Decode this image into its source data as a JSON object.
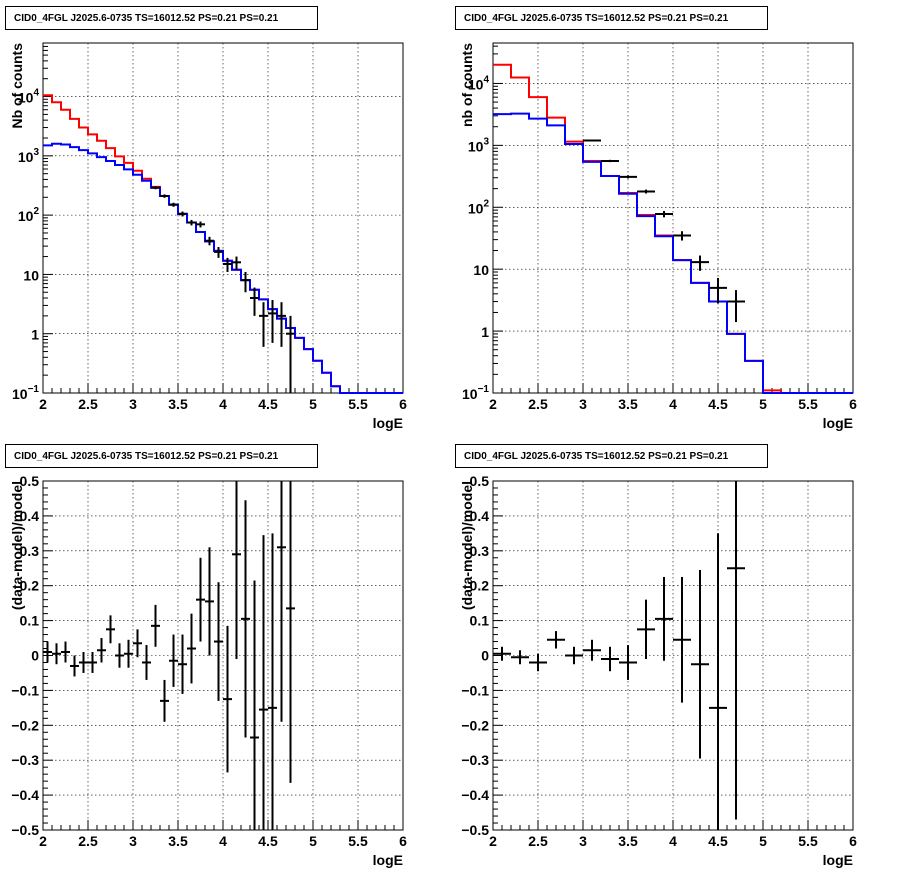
{
  "chart_data": [
    {
      "type": "line",
      "title": "CID0_4FGL J2025.6-0735 TS=16012.52 PS=0.21 PS=0.21",
      "xlabel": "logE",
      "ylabel": "Nb of counts",
      "xlim": [
        2,
        6
      ],
      "ylim": [
        0.1,
        80000
      ],
      "yscale": "log",
      "grid": true,
      "x_ticks": [
        "2",
        "2.5",
        "3",
        "3.5",
        "4",
        "4.5",
        "5",
        "5.5",
        "6"
      ],
      "y_ticks": [
        {
          "value": 10000,
          "label": "10",
          "exp": "4"
        },
        {
          "value": 1000,
          "label": "10",
          "exp": "3"
        },
        {
          "value": 100,
          "label": "10",
          "exp": "2"
        },
        {
          "value": 10,
          "label": "10",
          "exp": ""
        },
        {
          "value": 1,
          "label": "1",
          "exp": ""
        },
        {
          "value": 0.1,
          "label": "10",
          "exp": "−1"
        }
      ],
      "bin_edges": [
        2.0,
        2.1,
        2.2,
        2.3,
        2.4,
        2.5,
        2.6,
        2.7,
        2.8,
        2.9,
        3.0,
        3.1,
        3.2,
        3.3,
        3.4,
        3.5,
        3.6,
        3.7,
        3.8,
        3.9,
        4.0,
        4.1,
        4.2,
        4.3,
        4.4,
        4.5,
        4.6,
        4.7,
        4.8,
        4.9,
        5.0,
        5.1,
        5.2,
        5.3,
        5.4,
        5.5,
        5.6,
        5.7,
        5.8,
        5.9,
        6.0
      ],
      "series": [
        {
          "color": "#ff0000",
          "values": [
            10500,
            8000,
            6000,
            4200,
            3000,
            2300,
            1800,
            1350,
            980,
            760,
            560,
            410,
            300,
            210,
            150,
            105,
            75,
            52,
            36,
            25,
            17,
            12,
            8,
            5.5,
            3.8,
            2.6,
            1.8,
            1.25,
            0.85,
            0.55,
            0.35,
            0.22,
            0.13,
            0.1,
            0.1,
            0.1,
            0.1,
            0.1,
            0.1,
            0.1
          ]
        },
        {
          "color": "#0000ff",
          "values": [
            1500,
            1600,
            1550,
            1400,
            1250,
            1100,
            950,
            820,
            700,
            590,
            480,
            380,
            290,
            210,
            150,
            105,
            75,
            52,
            36,
            25,
            17,
            12,
            8,
            5.5,
            3.8,
            2.6,
            1.8,
            1.25,
            0.85,
            0.55,
            0.35,
            0.22,
            0.13,
            0.1,
            0.1,
            0.1,
            0.1,
            0.1,
            0.1,
            0.1
          ]
        }
      ],
      "data_points": {
        "x": [
          3.25,
          3.35,
          3.45,
          3.55,
          3.65,
          3.75,
          3.85,
          3.95,
          4.05,
          4.15,
          4.25,
          4.35,
          4.45,
          4.55,
          4.65,
          4.75
        ],
        "y": [
          290,
          210,
          150,
          105,
          75,
          70,
          37,
          24,
          15,
          16,
          8,
          4,
          2,
          2.2,
          2,
          1
        ],
        "yerr_low": [
          17,
          14,
          12,
          10,
          8,
          8,
          6,
          5,
          4,
          4,
          3,
          2,
          1.4,
          1.5,
          1.4,
          0.9
        ],
        "yerr_high": [
          17,
          14,
          12,
          10,
          8,
          8,
          6,
          5,
          4,
          4,
          3,
          2,
          1.4,
          1.5,
          1.4,
          1
        ]
      }
    },
    {
      "type": "line",
      "title": "CID0_4FGL J2025.6-0735 TS=16012.52 PS=0.21 PS=0.21",
      "xlabel": "logE",
      "ylabel": "nb of counts",
      "xlim": [
        2,
        6
      ],
      "ylim": [
        0.1,
        45000
      ],
      "yscale": "log",
      "grid": true,
      "x_ticks": [
        "2",
        "2.5",
        "3",
        "3.5",
        "4",
        "4.5",
        "5",
        "5.5",
        "6"
      ],
      "y_ticks": [
        {
          "value": 10000,
          "label": "10",
          "exp": "4"
        },
        {
          "value": 1000,
          "label": "10",
          "exp": "3"
        },
        {
          "value": 100,
          "label": "10",
          "exp": "2"
        },
        {
          "value": 10,
          "label": "10",
          "exp": ""
        },
        {
          "value": 1,
          "label": "1",
          "exp": ""
        },
        {
          "value": 0.1,
          "label": "10",
          "exp": "−1"
        }
      ],
      "bin_edges": [
        2.0,
        2.2,
        2.4,
        2.6,
        2.8,
        3.0,
        3.2,
        3.4,
        3.6,
        3.8,
        4.0,
        4.2,
        4.4,
        4.6,
        4.8,
        5.0,
        5.2,
        5.4,
        5.6,
        5.8,
        6.0
      ],
      "series": [
        {
          "color": "#ff0000",
          "values": [
            20000,
            12500,
            6000,
            2800,
            1150,
            560,
            320,
            170,
            75,
            35,
            14,
            6,
            3,
            0.9,
            0.33,
            0.11,
            0.1,
            0.1,
            0.1,
            0.1
          ]
        },
        {
          "color": "#0000ff",
          "values": [
            3200,
            3250,
            2700,
            2100,
            1050,
            540,
            320,
            165,
            72,
            34,
            14,
            6,
            3,
            0.9,
            0.33,
            0.1,
            0.1,
            0.1,
            0.1,
            0.1
          ]
        }
      ],
      "data_points": {
        "x": [
          3.1,
          3.3,
          3.5,
          3.7,
          3.9,
          4.1,
          4.3,
          4.5,
          4.7
        ],
        "y": [
          1200,
          560,
          310,
          180,
          78,
          35,
          13,
          5,
          3
        ],
        "yerr_low": [
          35,
          24,
          18,
          13,
          9,
          6,
          3.6,
          2.2,
          1.6
        ],
        "yerr_high": [
          35,
          24,
          18,
          13,
          9,
          6,
          3.6,
          2.2,
          1.6
        ]
      }
    },
    {
      "type": "scatter",
      "title": "CID0_4FGL J2025.6-0735 TS=16012.52 PS=0.21 PS=0.21",
      "xlabel": "logE",
      "ylabel": "(data-model)/model",
      "xlim": [
        2,
        6
      ],
      "ylim": [
        -0.5,
        0.5
      ],
      "grid": true,
      "x_ticks": [
        "2",
        "2.5",
        "3",
        "3.5",
        "4",
        "4.5",
        "5",
        "5.5",
        "6"
      ],
      "y_ticks": [
        "0.5",
        "0.4",
        "0.3",
        "0.2",
        "0.1",
        "0",
        "−0.1",
        "−0.2",
        "−0.3",
        "−0.4",
        "−0.5"
      ],
      "y_tick_values": [
        0.5,
        0.4,
        0.3,
        0.2,
        0.1,
        0,
        -0.1,
        -0.2,
        -0.3,
        -0.4,
        -0.5
      ],
      "x_halfwidth": 0.05,
      "points": {
        "x": [
          2.05,
          2.15,
          2.25,
          2.35,
          2.45,
          2.55,
          2.65,
          2.75,
          2.85,
          2.95,
          3.05,
          3.15,
          3.25,
          3.35,
          3.45,
          3.55,
          3.65,
          3.75,
          3.85,
          3.95,
          4.05,
          4.15,
          4.25,
          4.35,
          4.45,
          4.55,
          4.65,
          4.75
        ],
        "y": [
          0.01,
          0.005,
          0.01,
          -0.03,
          -0.02,
          -0.02,
          0.015,
          0.075,
          0.0,
          0.005,
          0.035,
          -0.02,
          0.085,
          -0.13,
          -0.015,
          -0.025,
          0.02,
          0.16,
          0.155,
          0.04,
          -0.125,
          0.29,
          0.105,
          -0.235,
          -0.155,
          -0.15,
          0.31,
          0.135
        ],
        "yerr": [
          0.03,
          0.03,
          0.03,
          0.03,
          0.03,
          0.03,
          0.035,
          0.04,
          0.035,
          0.04,
          0.04,
          0.05,
          0.06,
          0.06,
          0.075,
          0.085,
          0.1,
          0.12,
          0.155,
          0.17,
          0.21,
          0.3,
          0.34,
          0.45,
          0.5,
          0.5,
          0.5,
          0.5
        ]
      }
    },
    {
      "type": "scatter",
      "title": "CID0_4FGL J2025.6-0735 TS=16012.52 PS=0.21 PS=0.21",
      "xlabel": "logE",
      "ylabel": "(data-model)/model",
      "xlim": [
        2,
        6
      ],
      "ylim": [
        -0.5,
        0.5
      ],
      "grid": true,
      "x_ticks": [
        "2",
        "2.5",
        "3",
        "3.5",
        "4",
        "4.5",
        "5",
        "5.5",
        "6"
      ],
      "y_ticks": [
        "0.5",
        "0.4",
        "0.3",
        "0.2",
        "0.1",
        "0",
        "−0.1",
        "−0.2",
        "−0.3",
        "−0.4",
        "−0.5"
      ],
      "y_tick_values": [
        0.5,
        0.4,
        0.3,
        0.2,
        0.1,
        0,
        -0.1,
        -0.2,
        -0.3,
        -0.4,
        -0.5
      ],
      "x_halfwidth": 0.1,
      "points": {
        "x": [
          2.1,
          2.3,
          2.5,
          2.7,
          2.9,
          3.1,
          3.3,
          3.5,
          3.7,
          3.9,
          4.1,
          4.3,
          4.5,
          4.7
        ],
        "y": [
          0.005,
          -0.005,
          -0.02,
          0.045,
          0.0,
          0.015,
          -0.01,
          -0.02,
          0.075,
          0.105,
          0.045,
          -0.025,
          -0.15,
          0.25
        ],
        "yerr": [
          0.02,
          0.02,
          0.025,
          0.025,
          0.025,
          0.03,
          0.035,
          0.05,
          0.085,
          0.12,
          0.18,
          0.27,
          0.5,
          0.72
        ]
      }
    }
  ]
}
